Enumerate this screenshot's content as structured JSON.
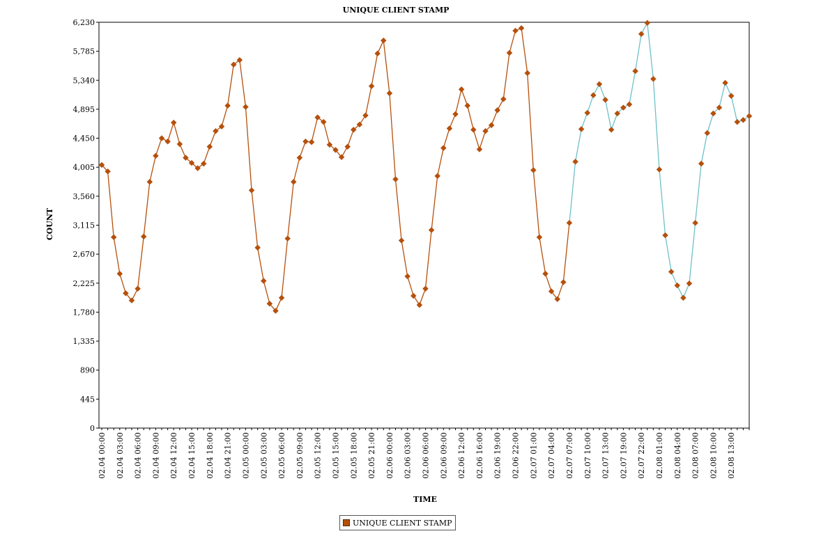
{
  "chart_data": {
    "type": "line",
    "title": "UNIQUE CLIENT STAMP",
    "xlabel": "TIME",
    "ylabel": "COUNT",
    "ylim": [
      0,
      6230
    ],
    "y_ticks": [
      0,
      445,
      890,
      1335,
      1780,
      2225,
      2670,
      3115,
      3560,
      4005,
      4450,
      4895,
      5340,
      5785,
      6230
    ],
    "y_tick_labels": [
      "0",
      "445",
      "890",
      "1,335",
      "1,780",
      "2,225",
      "2,670",
      "3,115",
      "3,560",
      "4,005",
      "4,450",
      "4,895",
      "5,340",
      "5,785",
      "6,230"
    ],
    "x_tick_labels": [
      "02.04 00:00",
      "02.04 03:00",
      "02.04 06:00",
      "02.04 09:00",
      "02.04 12:00",
      "02.04 15:00",
      "02.04 18:00",
      "02.04 21:00",
      "02.05 00:00",
      "02.05 03:00",
      "02.05 06:00",
      "02.05 09:00",
      "02.05 12:00",
      "02.05 15:00",
      "02.05 18:00",
      "02.05 21:00",
      "02.06 00:00",
      "02.06 03:00",
      "02.06 06:00",
      "02.06 09:00",
      "02.06 12:00",
      "02.06 16:00",
      "02.06 19:00",
      "02.06 22:00",
      "02.07 01:00",
      "02.07 04:00",
      "02.07 07:00",
      "02.07 10:00",
      "02.07 13:00",
      "02.07 19:00",
      "02.07 22:00",
      "02.08 01:00",
      "02.08 04:00",
      "02.08 07:00",
      "02.08 10:00",
      "02.08 13:00"
    ],
    "grid": false,
    "legend_position": "bottom-center",
    "series": [
      {
        "name": "UNIQUE CLIENT STAMP",
        "color": "#b5500c",
        "line_color_highlight": "#6fc0c8",
        "highlight_start_index": 78,
        "values": [
          4040,
          3940,
          2930,
          2370,
          2070,
          1960,
          2140,
          2940,
          3780,
          4180,
          4450,
          4400,
          4690,
          4360,
          4150,
          4070,
          3990,
          4060,
          4320,
          4560,
          4630,
          4950,
          5580,
          5650,
          4930,
          3650,
          2770,
          2260,
          1910,
          1800,
          2000,
          2910,
          3780,
          4150,
          4400,
          4390,
          4770,
          4700,
          4350,
          4270,
          4160,
          4320,
          4580,
          4660,
          4800,
          5250,
          5750,
          5950,
          5140,
          3820,
          2880,
          2330,
          2030,
          1890,
          2140,
          3040,
          3870,
          4300,
          4600,
          4820,
          5200,
          4950,
          4580,
          4280,
          4560,
          4650,
          4880,
          5050,
          5760,
          6100,
          6140,
          5450,
          3960,
          2930,
          2370,
          2100,
          1980,
          2240,
          3150,
          4090,
          4590,
          4840,
          5110,
          5280,
          5040,
          4580,
          4830,
          4920,
          4970,
          5480,
          6050,
          6220,
          5360,
          3970,
          2960,
          2400,
          2190,
          2000,
          2220,
          3150,
          4060,
          4530,
          4830,
          4920,
          5300,
          5100,
          4700,
          4730,
          4790
        ]
      }
    ]
  },
  "legend": {
    "label": "UNIQUE CLIENT STAMP"
  }
}
